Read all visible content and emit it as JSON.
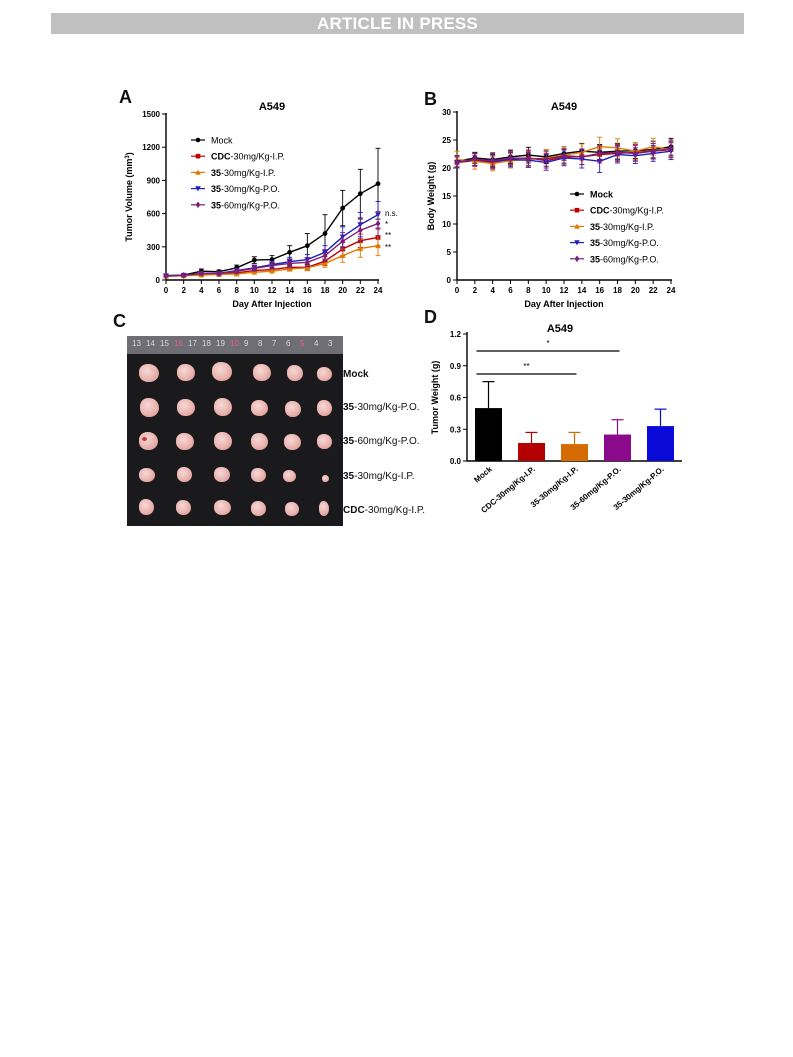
{
  "banner": "ARTICLE IN PRESS",
  "panels": {
    "a": "A",
    "b": "B",
    "c": "C",
    "d": "D"
  },
  "chart_data": [
    {
      "id": "A",
      "type": "line",
      "title": "A549",
      "xlabel": "Day After Injection",
      "ylabel": "Tumor Volume (mm³)",
      "ylabel_main": "Tumor Volume (mm",
      "ylabel_sup": "3",
      "ylabel_end": ")",
      "xlim": [
        0,
        24
      ],
      "ylim": [
        0,
        1500
      ],
      "xticks": [
        "0",
        "2",
        "4",
        "6",
        "8",
        "10",
        "12",
        "14",
        "16",
        "18",
        "20",
        "22",
        "24"
      ],
      "yticks": [
        "0",
        "300",
        "600",
        "900",
        "1200",
        "1500"
      ],
      "x": [
        0,
        2,
        4,
        6,
        8,
        10,
        12,
        14,
        16,
        18,
        20,
        22,
        24
      ],
      "legend_position": "top-left",
      "series": [
        {
          "name": "Mock",
          "bold": "",
          "rest": "Mock",
          "color": "#000000",
          "marker": "circle",
          "values": [
            40,
            45,
            80,
            75,
            110,
            180,
            185,
            250,
            310,
            420,
            650,
            780,
            870
          ],
          "errors": [
            10,
            10,
            20,
            15,
            25,
            30,
            35,
            60,
            110,
            170,
            160,
            220,
            320
          ]
        },
        {
          "name": "CDC-30mg/Kg-I.P.",
          "bold": "CDC",
          "rest": "-30mg/Kg-I.P.",
          "color": "#c00000",
          "marker": "square",
          "values": [
            35,
            40,
            50,
            55,
            65,
            85,
            95,
            115,
            115,
            170,
            280,
            355,
            385
          ],
          "errors": [
            8,
            8,
            10,
            10,
            12,
            15,
            15,
            25,
            30,
            40,
            60,
            60,
            75
          ]
        },
        {
          "name": "35-30mg/Kg-I.P.",
          "bold": "35",
          "rest": "-30mg/Kg-I.P.",
          "color": "#e07b00",
          "marker": "triangle-up",
          "values": [
            35,
            38,
            45,
            50,
            55,
            70,
            80,
            100,
            110,
            150,
            220,
            285,
            310
          ],
          "errors": [
            8,
            8,
            10,
            10,
            12,
            15,
            15,
            20,
            25,
            35,
            60,
            80,
            90
          ]
        },
        {
          "name": "35-30mg/Kg-P.O.",
          "bold": "35",
          "rest": "-30mg/Kg-P.O.",
          "color": "#1f1fbf",
          "marker": "triangle-down",
          "values": [
            38,
            42,
            60,
            60,
            85,
            110,
            140,
            165,
            185,
            250,
            390,
            500,
            590
          ],
          "errors": [
            8,
            10,
            15,
            15,
            20,
            25,
            30,
            40,
            45,
            60,
            90,
            110,
            120
          ]
        },
        {
          "name": "35-60mg/Kg-P.O.",
          "bold": "35",
          "rest": "-60mg/Kg-P.O.",
          "color": "#7a1f7a",
          "marker": "diamond",
          "values": [
            38,
            42,
            60,
            58,
            80,
            105,
            130,
            150,
            160,
            220,
            350,
            450,
            510
          ],
          "errors": [
            8,
            10,
            15,
            15,
            20,
            25,
            30,
            40,
            40,
            55,
            80,
            100,
            110
          ]
        }
      ],
      "annotations": [
        "n.s.",
        "*",
        "**",
        "**"
      ]
    },
    {
      "id": "B",
      "type": "line",
      "title": "A549",
      "xlabel": "Day After Injection",
      "ylabel": "Body Weight (g)",
      "xlim": [
        0,
        24
      ],
      "ylim": [
        0,
        30
      ],
      "xticks": [
        "0",
        "2",
        "4",
        "6",
        "8",
        "10",
        "12",
        "14",
        "16",
        "18",
        "20",
        "22",
        "24"
      ],
      "yticks": [
        "0",
        "5",
        "10",
        "15",
        "20",
        "25",
        "30"
      ],
      "x": [
        0,
        2,
        4,
        6,
        8,
        10,
        12,
        14,
        16,
        18,
        20,
        22,
        24
      ],
      "legend_position": "bottom-right",
      "series": [
        {
          "name": "Mock",
          "bold": "Mock",
          "rest": "",
          "color": "#000000",
          "marker": "circle",
          "values": [
            21.2,
            21.8,
            21.5,
            22,
            22.3,
            22,
            22.6,
            23,
            22.8,
            23,
            23.1,
            23.3,
            23.8
          ],
          "errors": [
            1,
            1,
            1.2,
            1.2,
            1.4,
            1.2,
            1.2,
            1.4,
            1.4,
            1.4,
            1.4,
            1.5,
            1.5
          ]
        },
        {
          "name": "CDC-30mg/Kg-I.P.",
          "bold": "CDC",
          "rest": "-30mg/Kg-I.P.",
          "color": "#c00000",
          "marker": "square",
          "values": [
            21,
            21.3,
            21,
            21.6,
            21.8,
            21.3,
            22,
            22,
            22.4,
            22.6,
            22.8,
            23,
            23.3
          ],
          "errors": [
            1,
            1,
            1.2,
            1.2,
            1.4,
            1.3,
            1.3,
            1.4,
            1.5,
            1.4,
            1.4,
            1.4,
            1.4
          ]
        },
        {
          "name": "35-30mg/Kg-I.P.",
          "bold": "35",
          "rest": "-30mg/Kg-I.P.",
          "color": "#e07b00",
          "marker": "triangle-up",
          "values": [
            21.5,
            21.2,
            20.8,
            21.3,
            21.5,
            21.8,
            22.3,
            22.8,
            23.8,
            23.6,
            23,
            23.8,
            23.3
          ],
          "errors": [
            1.5,
            1.4,
            1.3,
            1.3,
            1.3,
            1.5,
            1.5,
            1.5,
            1.7,
            1.6,
            1.5,
            1.5,
            1.5
          ]
        },
        {
          "name": "35-30mg/Kg-P.O.",
          "bold": "35",
          "rest": "-30mg/Kg-P.O.",
          "color": "#1f1fbf",
          "marker": "triangle-down",
          "values": [
            21,
            21.5,
            21.2,
            21.5,
            21.4,
            21,
            21.8,
            21.6,
            21.2,
            22.4,
            22.2,
            22.6,
            23
          ],
          "errors": [
            1,
            1.1,
            1.2,
            1.3,
            1.3,
            1.4,
            1.4,
            1.6,
            2,
            1.5,
            1.4,
            1.4,
            1.5
          ]
        },
        {
          "name": "35-60mg/Kg-P.O.",
          "bold": "35",
          "rest": "-60mg/Kg-P.O.",
          "color": "#7a1f7a",
          "marker": "diamond",
          "values": [
            21,
            21.6,
            21.3,
            21.8,
            21.7,
            21.6,
            22.2,
            22,
            22.6,
            22.8,
            22.6,
            23,
            23.5
          ],
          "errors": [
            1,
            1.1,
            1.2,
            1.2,
            1.3,
            1.3,
            1.3,
            1.4,
            1.4,
            1.4,
            1.4,
            1.4,
            1.5
          ]
        }
      ]
    },
    {
      "id": "D",
      "type": "bar",
      "title": "A549",
      "ylabel": "Tumor Weight (g)",
      "ylim": [
        0,
        1.2
      ],
      "yticks": [
        "0.0",
        "0.3",
        "0.6",
        "0.9",
        "1.2"
      ],
      "categories": [
        "Mock",
        "CDC-30mg/Kg-I.P.",
        "35-30mg/Kg-I.P.",
        "35-60mg/Kg-P.O.",
        "35-30mg/Kg-P.O."
      ],
      "values": [
        0.5,
        0.17,
        0.16,
        0.25,
        0.33
      ],
      "errors": [
        0.25,
        0.1,
        0.11,
        0.14,
        0.16
      ],
      "colors": [
        "#000000",
        "#b30000",
        "#d46a00",
        "#8b0a8b",
        "#0a0ad8"
      ],
      "significance": [
        {
          "from": 0,
          "to": 3,
          "label": "*"
        },
        {
          "from": 0,
          "to": 2,
          "label": "**"
        }
      ]
    }
  ],
  "photo": {
    "ruler_marks": [
      "13",
      "14",
      "15",
      "16",
      "17",
      "18",
      "19",
      "10",
      "9",
      "8",
      "7",
      "6",
      "5",
      "4",
      "3"
    ],
    "labels": [
      {
        "bold": "Mock",
        "rest": ""
      },
      {
        "bold": "35",
        "rest": "-30mg/Kg-P.O."
      },
      {
        "bold": "35",
        "rest": "-60mg/Kg-P.O."
      },
      {
        "bold": "35",
        "rest": "-30mg/Kg-I.P."
      },
      {
        "bold": "CDC",
        "rest": "-30mg/Kg-I.P."
      }
    ]
  }
}
